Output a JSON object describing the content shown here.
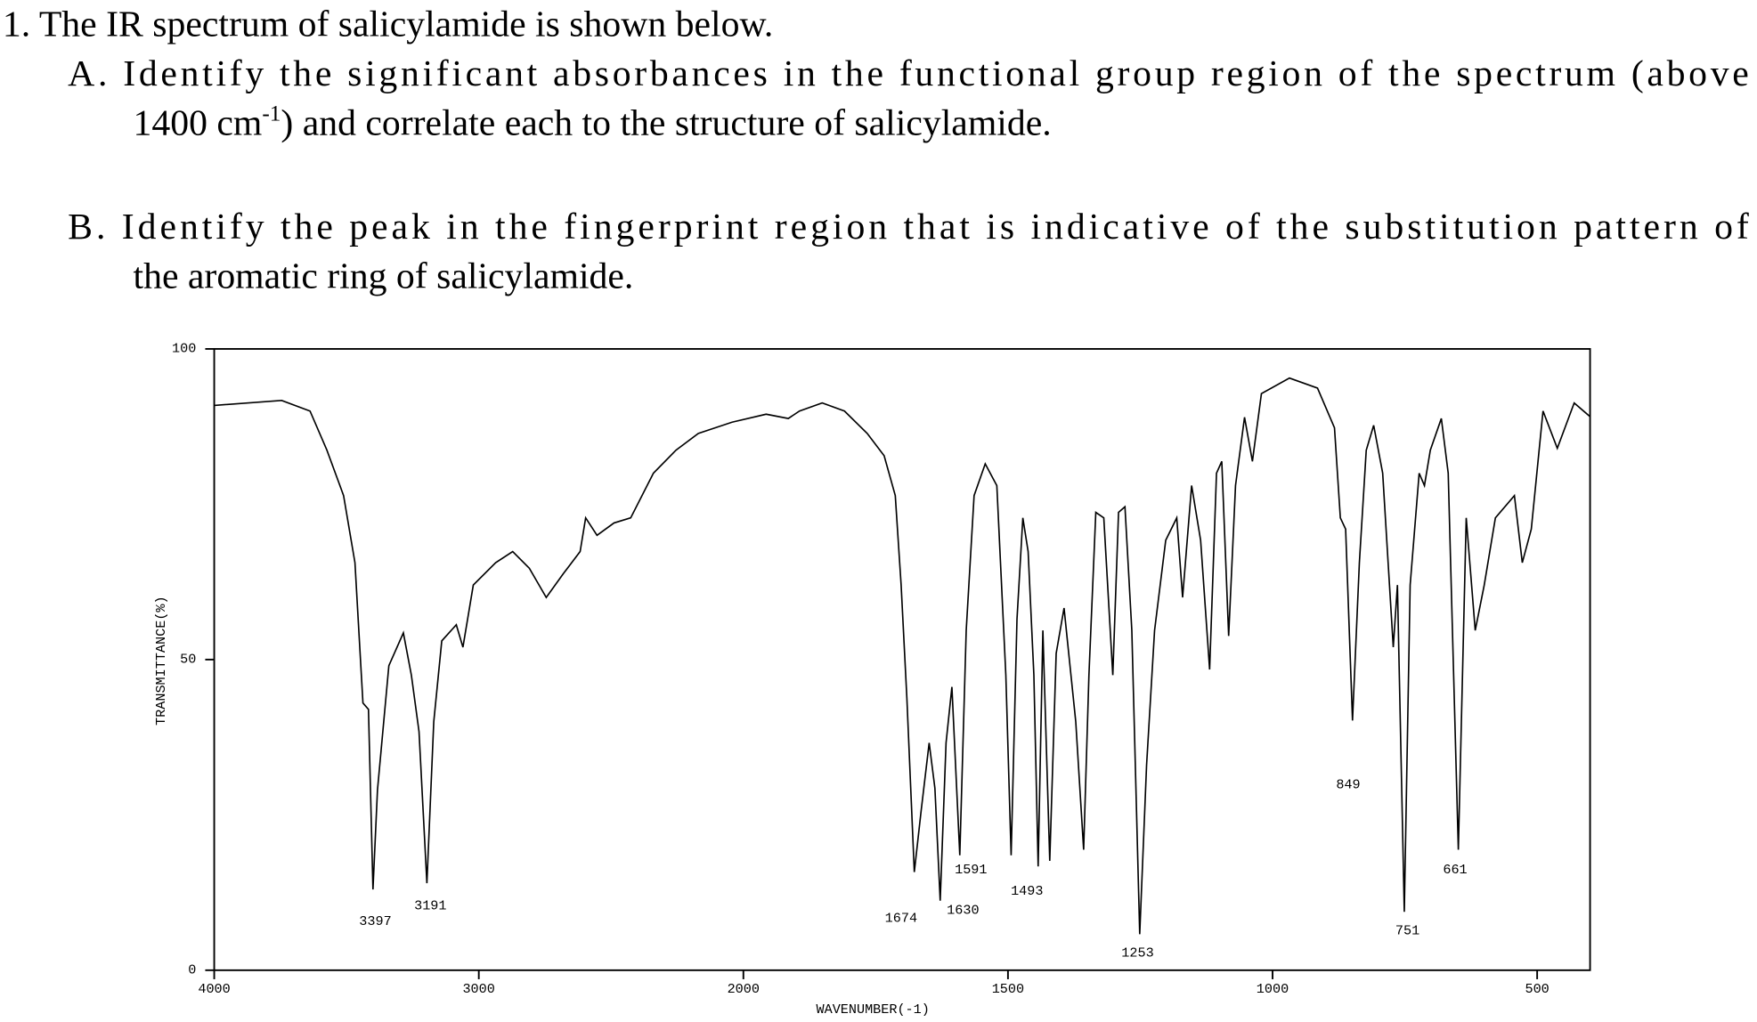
{
  "question": {
    "title": "1. The IR spectrum of salicylamide is shown below.",
    "part_a": [
      "A. Identify the significant absorbances in the functional group region of the spectrum (above",
      "1400 cm",
      "-1",
      ") and correlate each to the structure of salicylamide."
    ],
    "part_b": [
      "B. Identify the peak in the fingerprint region that is indicative of the substitution pattern of",
      "the aromatic ring of salicylamide."
    ]
  },
  "chart_data": {
    "type": "line",
    "xlabel": "WAVENUMBER(-1)",
    "ylabel": "TRANSMITTANCE(%)",
    "color": "#000000",
    "xlim": [
      4000,
      400
    ],
    "xticks": [
      4000,
      3000,
      2000,
      1500,
      1000,
      500
    ],
    "ylim": [
      0,
      100
    ],
    "yticks": [
      0,
      50,
      100
    ],
    "x": [
      4000,
      3745,
      3638,
      3574,
      3511,
      3468,
      3438,
      3417,
      3400,
      3383,
      3340,
      3285,
      3255,
      3226,
      3196,
      3170,
      3140,
      3085,
      3060,
      3021,
      2936,
      2872,
      2809,
      2745,
      2681,
      2617,
      2596,
      2553,
      2489,
      2426,
      2340,
      2255,
      2170,
      2043,
      1957,
      1915,
      1894,
      1851,
      1809,
      1766,
      1734,
      1713,
      1702,
      1691,
      1677,
      1664,
      1649,
      1638,
      1628,
      1617,
      1606,
      1591,
      1579,
      1564,
      1543,
      1521,
      1504,
      1494,
      1483,
      1472,
      1462,
      1451,
      1443,
      1434,
      1421,
      1409,
      1394,
      1372,
      1357,
      1347,
      1334,
      1319,
      1302,
      1291,
      1279,
      1266,
      1251,
      1238,
      1223,
      1202,
      1181,
      1170,
      1153,
      1136,
      1119,
      1106,
      1096,
      1083,
      1070,
      1053,
      1038,
      1021,
      968,
      915,
      883,
      872,
      862,
      849,
      836,
      823,
      809,
      792,
      772,
      764,
      751,
      740,
      723,
      713,
      702,
      681,
      668,
      649,
      634,
      617,
      600,
      579,
      543,
      528,
      511,
      489,
      462,
      430,
      400
    ],
    "values": [
      90.9,
      91.7,
      90,
      83.7,
      76.4,
      65.6,
      43,
      42,
      13,
      29,
      49,
      54.3,
      47.5,
      38.4,
      14,
      40,
      53,
      55.6,
      52,
      62,
      65.6,
      67.4,
      64.7,
      60,
      63.8,
      67.4,
      72.8,
      70,
      72,
      72.8,
      80,
      83.7,
      86.4,
      88.2,
      89.5,
      88.8,
      90,
      91.3,
      90,
      86.4,
      82.8,
      76.4,
      62,
      43.8,
      15.8,
      25.7,
      36.6,
      29.3,
      11.2,
      36.6,
      45.6,
      18.5,
      54.7,
      76.4,
      81.5,
      78,
      47.5,
      18.5,
      56.5,
      72.8,
      67.4,
      47.5,
      16.7,
      54.7,
      17.6,
      51,
      58.3,
      40,
      19.4,
      47.5,
      73.7,
      72.8,
      47.5,
      73.7,
      74.6,
      54.7,
      5.8,
      33,
      54.7,
      69.2,
      72.8,
      60,
      78,
      69.2,
      48.4,
      80,
      81.9,
      53.8,
      78,
      89,
      81.9,
      92.8,
      95.3,
      93.7,
      87.3,
      72.8,
      71,
      40.2,
      65.6,
      83.7,
      87.7,
      80,
      52,
      62,
      9.4,
      62,
      80,
      78,
      83.7,
      88.8,
      80,
      19.4,
      72.8,
      54.7,
      62,
      72.8,
      76.4,
      65.6,
      71,
      90,
      84,
      91.3,
      89.1
    ],
    "annotations": [
      {
        "text": "3397",
        "x": 3391,
        "y": 8
      },
      {
        "text": "3191",
        "x": 3183,
        "y": 10.5
      },
      {
        "text": "1674",
        "x": 1702,
        "y": 8.5
      },
      {
        "text": "1630",
        "x": 1585,
        "y": 9.8
      },
      {
        "text": "1591",
        "x": 1570,
        "y": 16.3
      },
      {
        "text": "1493",
        "x": 1464,
        "y": 12.9
      },
      {
        "text": "1253",
        "x": 1255,
        "y": 2.9
      },
      {
        "text": "849",
        "x": 857,
        "y": 30
      },
      {
        "text": "751",
        "x": 745,
        "y": 6.5
      },
      {
        "text": "661",
        "x": 655,
        "y": 16.3
      }
    ]
  }
}
